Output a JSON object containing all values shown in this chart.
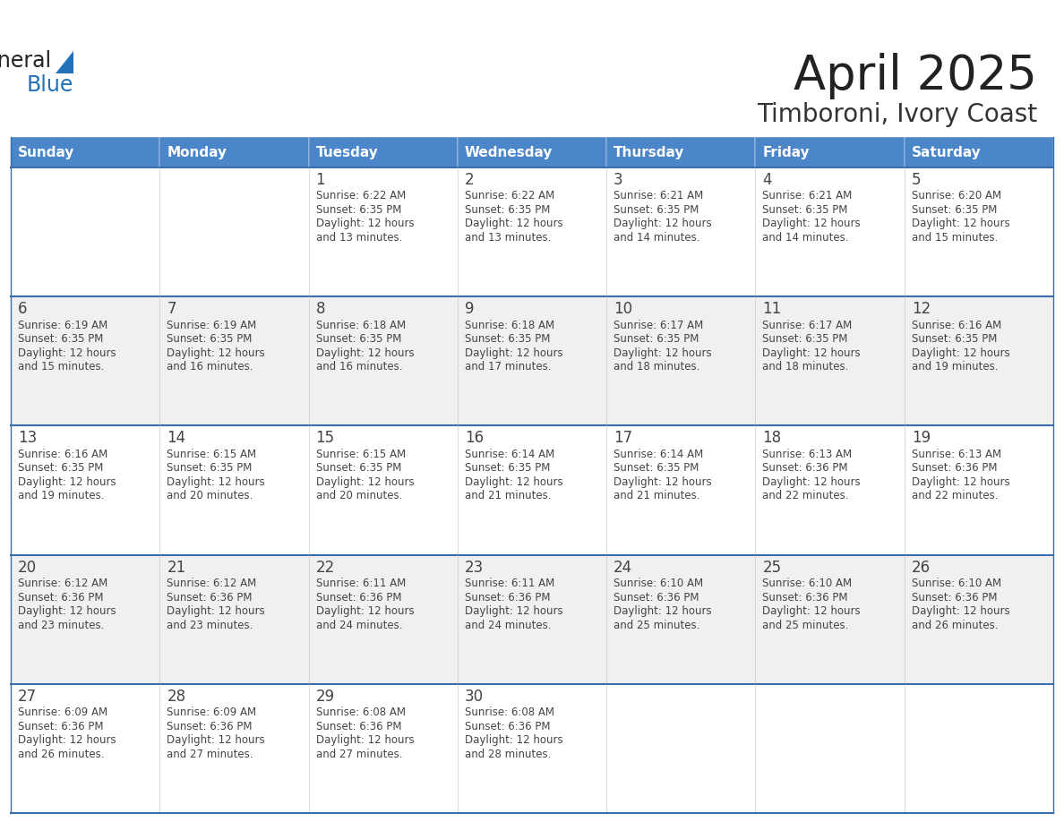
{
  "title": "April 2025",
  "subtitle": "Timboroni, Ivory Coast",
  "header_color": "#4a86c8",
  "header_text_color": "#ffffff",
  "cell_bg_white": "#ffffff",
  "cell_bg_gray": "#f0f0f0",
  "border_color": "#3a6eaa",
  "title_color": "#222222",
  "subtitle_color": "#333333",
  "text_color": "#444444",
  "days_of_week": [
    "Sunday",
    "Monday",
    "Tuesday",
    "Wednesday",
    "Thursday",
    "Friday",
    "Saturday"
  ],
  "weeks": [
    [
      {
        "day": "",
        "lines": []
      },
      {
        "day": "",
        "lines": []
      },
      {
        "day": "1",
        "lines": [
          "Sunrise: 6:22 AM",
          "Sunset: 6:35 PM",
          "Daylight: 12 hours",
          "and 13 minutes."
        ]
      },
      {
        "day": "2",
        "lines": [
          "Sunrise: 6:22 AM",
          "Sunset: 6:35 PM",
          "Daylight: 12 hours",
          "and 13 minutes."
        ]
      },
      {
        "day": "3",
        "lines": [
          "Sunrise: 6:21 AM",
          "Sunset: 6:35 PM",
          "Daylight: 12 hours",
          "and 14 minutes."
        ]
      },
      {
        "day": "4",
        "lines": [
          "Sunrise: 6:21 AM",
          "Sunset: 6:35 PM",
          "Daylight: 12 hours",
          "and 14 minutes."
        ]
      },
      {
        "day": "5",
        "lines": [
          "Sunrise: 6:20 AM",
          "Sunset: 6:35 PM",
          "Daylight: 12 hours",
          "and 15 minutes."
        ]
      }
    ],
    [
      {
        "day": "6",
        "lines": [
          "Sunrise: 6:19 AM",
          "Sunset: 6:35 PM",
          "Daylight: 12 hours",
          "and 15 minutes."
        ]
      },
      {
        "day": "7",
        "lines": [
          "Sunrise: 6:19 AM",
          "Sunset: 6:35 PM",
          "Daylight: 12 hours",
          "and 16 minutes."
        ]
      },
      {
        "day": "8",
        "lines": [
          "Sunrise: 6:18 AM",
          "Sunset: 6:35 PM",
          "Daylight: 12 hours",
          "and 16 minutes."
        ]
      },
      {
        "day": "9",
        "lines": [
          "Sunrise: 6:18 AM",
          "Sunset: 6:35 PM",
          "Daylight: 12 hours",
          "and 17 minutes."
        ]
      },
      {
        "day": "10",
        "lines": [
          "Sunrise: 6:17 AM",
          "Sunset: 6:35 PM",
          "Daylight: 12 hours",
          "and 18 minutes."
        ]
      },
      {
        "day": "11",
        "lines": [
          "Sunrise: 6:17 AM",
          "Sunset: 6:35 PM",
          "Daylight: 12 hours",
          "and 18 minutes."
        ]
      },
      {
        "day": "12",
        "lines": [
          "Sunrise: 6:16 AM",
          "Sunset: 6:35 PM",
          "Daylight: 12 hours",
          "and 19 minutes."
        ]
      }
    ],
    [
      {
        "day": "13",
        "lines": [
          "Sunrise: 6:16 AM",
          "Sunset: 6:35 PM",
          "Daylight: 12 hours",
          "and 19 minutes."
        ]
      },
      {
        "day": "14",
        "lines": [
          "Sunrise: 6:15 AM",
          "Sunset: 6:35 PM",
          "Daylight: 12 hours",
          "and 20 minutes."
        ]
      },
      {
        "day": "15",
        "lines": [
          "Sunrise: 6:15 AM",
          "Sunset: 6:35 PM",
          "Daylight: 12 hours",
          "and 20 minutes."
        ]
      },
      {
        "day": "16",
        "lines": [
          "Sunrise: 6:14 AM",
          "Sunset: 6:35 PM",
          "Daylight: 12 hours",
          "and 21 minutes."
        ]
      },
      {
        "day": "17",
        "lines": [
          "Sunrise: 6:14 AM",
          "Sunset: 6:35 PM",
          "Daylight: 12 hours",
          "and 21 minutes."
        ]
      },
      {
        "day": "18",
        "lines": [
          "Sunrise: 6:13 AM",
          "Sunset: 6:36 PM",
          "Daylight: 12 hours",
          "and 22 minutes."
        ]
      },
      {
        "day": "19",
        "lines": [
          "Sunrise: 6:13 AM",
          "Sunset: 6:36 PM",
          "Daylight: 12 hours",
          "and 22 minutes."
        ]
      }
    ],
    [
      {
        "day": "20",
        "lines": [
          "Sunrise: 6:12 AM",
          "Sunset: 6:36 PM",
          "Daylight: 12 hours",
          "and 23 minutes."
        ]
      },
      {
        "day": "21",
        "lines": [
          "Sunrise: 6:12 AM",
          "Sunset: 6:36 PM",
          "Daylight: 12 hours",
          "and 23 minutes."
        ]
      },
      {
        "day": "22",
        "lines": [
          "Sunrise: 6:11 AM",
          "Sunset: 6:36 PM",
          "Daylight: 12 hours",
          "and 24 minutes."
        ]
      },
      {
        "day": "23",
        "lines": [
          "Sunrise: 6:11 AM",
          "Sunset: 6:36 PM",
          "Daylight: 12 hours",
          "and 24 minutes."
        ]
      },
      {
        "day": "24",
        "lines": [
          "Sunrise: 6:10 AM",
          "Sunset: 6:36 PM",
          "Daylight: 12 hours",
          "and 25 minutes."
        ]
      },
      {
        "day": "25",
        "lines": [
          "Sunrise: 6:10 AM",
          "Sunset: 6:36 PM",
          "Daylight: 12 hours",
          "and 25 minutes."
        ]
      },
      {
        "day": "26",
        "lines": [
          "Sunrise: 6:10 AM",
          "Sunset: 6:36 PM",
          "Daylight: 12 hours",
          "and 26 minutes."
        ]
      }
    ],
    [
      {
        "day": "27",
        "lines": [
          "Sunrise: 6:09 AM",
          "Sunset: 6:36 PM",
          "Daylight: 12 hours",
          "and 26 minutes."
        ]
      },
      {
        "day": "28",
        "lines": [
          "Sunrise: 6:09 AM",
          "Sunset: 6:36 PM",
          "Daylight: 12 hours",
          "and 27 minutes."
        ]
      },
      {
        "day": "29",
        "lines": [
          "Sunrise: 6:08 AM",
          "Sunset: 6:36 PM",
          "Daylight: 12 hours",
          "and 27 minutes."
        ]
      },
      {
        "day": "30",
        "lines": [
          "Sunrise: 6:08 AM",
          "Sunset: 6:36 PM",
          "Daylight: 12 hours",
          "and 28 minutes."
        ]
      },
      {
        "day": "",
        "lines": []
      },
      {
        "day": "",
        "lines": []
      },
      {
        "day": "",
        "lines": []
      }
    ]
  ]
}
